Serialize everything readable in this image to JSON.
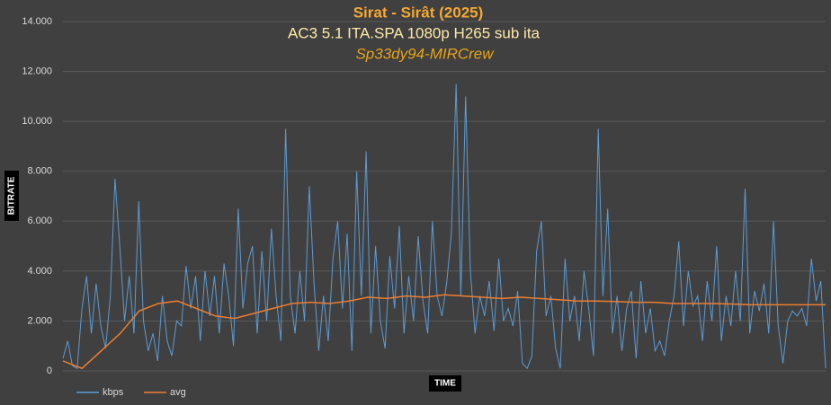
{
  "chart_data": {
    "type": "line",
    "title": "Sirat - Sirât (2025)",
    "subtitle": "AC3 5.1 ITA.SPA 1080p H265 sub ita",
    "caption": "Sp33dy94-MIRCrew",
    "y_label": "BITRATE",
    "x_label": "TIME",
    "ylim": [
      0,
      14000
    ],
    "yticks": [
      0,
      {
        "value": 2000,
        "label": "2.000"
      },
      {
        "value": 4000,
        "label": "4.000"
      },
      {
        "value": 6000,
        "label": "6.000"
      },
      {
        "value": 8000,
        "label": "8.000"
      },
      {
        "value": 10000,
        "label": "10.000"
      },
      {
        "value": 12000,
        "label": "12.000"
      },
      {
        "value": 14000,
        "label": "14.000"
      }
    ],
    "grid": true,
    "legend": "bottom-left",
    "series": [
      {
        "name": "kbps",
        "color": "#5b9bd5",
        "values": [
          500,
          1200,
          200,
          100,
          2500,
          3800,
          1500,
          3500,
          1800,
          900,
          3000,
          7700,
          5000,
          2000,
          3800,
          1500,
          6800,
          2000,
          800,
          1500,
          400,
          3000,
          1200,
          600,
          2000,
          1800,
          4200,
          2500,
          3800,
          1200,
          4000,
          2200,
          3800,
          1500,
          4300,
          3000,
          1000,
          6500,
          2500,
          4300,
          5000,
          1500,
          4800,
          2000,
          5700,
          3000,
          1200,
          9700,
          3000,
          1500,
          4000,
          2000,
          7400,
          3500,
          800,
          3000,
          1200,
          4500,
          6000,
          2500,
          5500,
          800,
          8000,
          3000,
          8800,
          1500,
          5000,
          2000,
          900,
          4600,
          2500,
          5800,
          1500,
          3800,
          2000,
          5400,
          2800,
          1500,
          6000,
          3000,
          2200,
          3500,
          5500,
          11500,
          3000,
          11000,
          4000,
          1500,
          3000,
          2200,
          3600,
          1600,
          4500,
          2000,
          2500,
          1800,
          3200,
          300,
          100,
          600,
          4800,
          6000,
          2200,
          3000,
          900,
          100,
          4500,
          2000,
          3000,
          1200,
          4000,
          2500,
          600,
          9700,
          3000,
          6500,
          1500,
          3000,
          800,
          2500,
          3200,
          500,
          3600,
          1500,
          2500,
          800,
          1200,
          600,
          2000,
          3000,
          5200,
          1800,
          4000,
          2600,
          3000,
          1200,
          3600,
          2000,
          5000,
          1200,
          3000,
          1800,
          4000,
          2000,
          7300,
          1500,
          3200,
          2400,
          3500,
          1500,
          6000,
          1800,
          300,
          2000,
          2400,
          2200,
          2500,
          1800,
          4500,
          2800,
          3600,
          100
        ]
      },
      {
        "name": "avg",
        "color": "#ed7d31",
        "values": [
          400,
          100,
          800,
          1500,
          2400,
          2700,
          2800,
          2500,
          2200,
          2100,
          2300,
          2500,
          2700,
          2750,
          2700,
          2800,
          2950,
          2900,
          3000,
          2950,
          3050,
          3000,
          2950,
          2900,
          2950,
          2900,
          2850,
          2800,
          2800,
          2780,
          2750,
          2750,
          2700,
          2700,
          2700,
          2680,
          2650,
          2650,
          2650,
          2650,
          2650
        ]
      }
    ]
  }
}
